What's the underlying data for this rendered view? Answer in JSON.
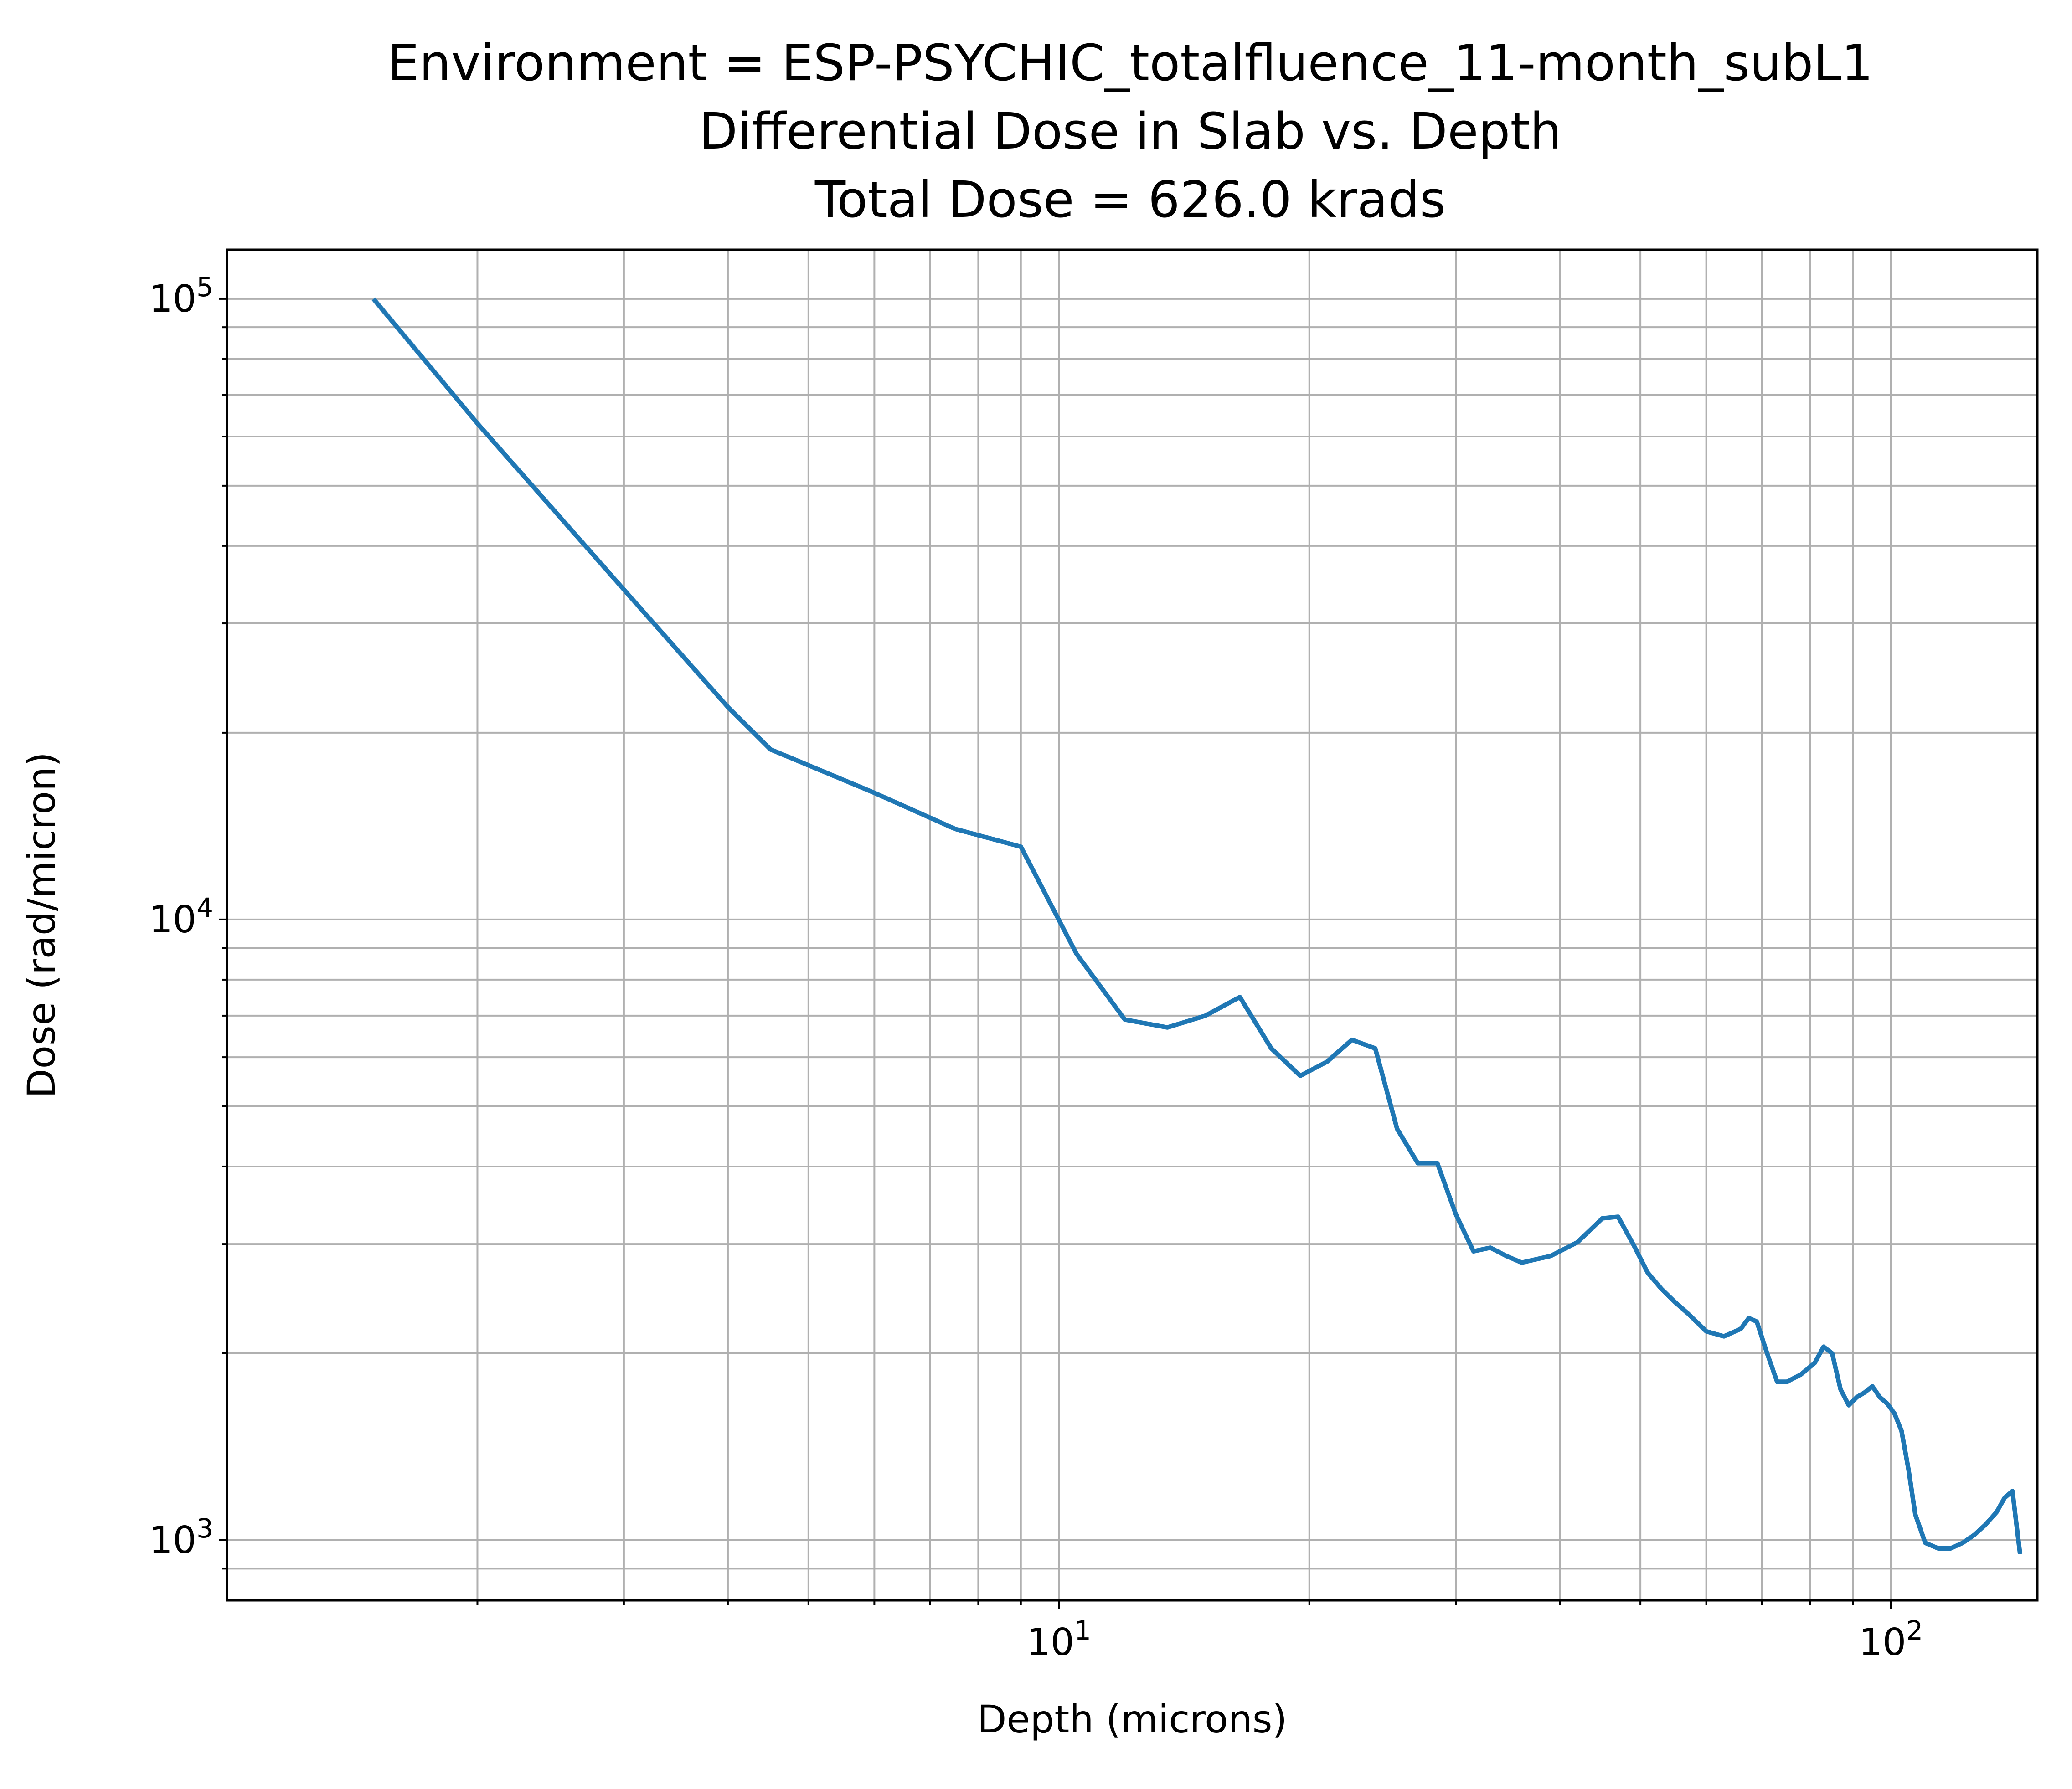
{
  "chart_data": {
    "type": "line",
    "title_lines": [
      "Environment = ESP-PSYCHIC_totalfluence_11-month_subL1",
      "Differential Dose in Slab vs. Depth",
      "Total Dose = 626.0 krads"
    ],
    "xlabel": "Depth (microns)",
    "ylabel": "Dose (rad/micron)",
    "x_scale": "log",
    "y_scale": "log",
    "xlim": [
      1.0,
      150
    ],
    "ylim": [
      800,
      120000
    ],
    "x_ticks": [
      {
        "value": 10,
        "base": "10",
        "exp": "1"
      },
      {
        "value": 100,
        "base": "10",
        "exp": "2"
      }
    ],
    "y_ticks": [
      {
        "value": 1000,
        "base": "10",
        "exp": "3"
      },
      {
        "value": 10000,
        "base": "10",
        "exp": "4"
      },
      {
        "value": 100000,
        "base": "10",
        "exp": "5"
      }
    ],
    "grid": true,
    "series": [
      {
        "color": "#1f77b4",
        "x": [
          1.5,
          2.0,
          3.0,
          4.0,
          4.5,
          6.0,
          7.5,
          9.0,
          10.5,
          12.0,
          13.5,
          15.0,
          16.5,
          18.0,
          19.5,
          21.0,
          22.5,
          24.0,
          25.5,
          27.0,
          28.5,
          30.0,
          31.5,
          33.0,
          34.5,
          36.0,
          39.0,
          42.0,
          45.0,
          47.0,
          49.0,
          51.0,
          53.0,
          55.0,
          57.0,
          60.0,
          63.0,
          66.0,
          67.5,
          69.0,
          71.0,
          73.0,
          75.0,
          78.0,
          81.0,
          83.0,
          85.0,
          87.0,
          89.0,
          91.0,
          93.0,
          95.0,
          97.0,
          99.0,
          101.0,
          103.0,
          105.0,
          107.0,
          110.0,
          114.0,
          118.0,
          122.0,
          126.0,
          130.0,
          134.0,
          137.0,
          140.0,
          143.0
        ],
        "y": [
          100000,
          63000,
          34000,
          22000,
          18800,
          16000,
          14000,
          13100,
          8800,
          6900,
          6700,
          7000,
          7500,
          6200,
          5600,
          5900,
          6400,
          6200,
          4600,
          4050,
          4050,
          3350,
          2920,
          2960,
          2870,
          2800,
          2870,
          3020,
          3300,
          3320,
          3000,
          2700,
          2540,
          2420,
          2320,
          2170,
          2130,
          2190,
          2280,
          2250,
          2000,
          1800,
          1800,
          1850,
          1930,
          2050,
          2000,
          1750,
          1650,
          1700,
          1730,
          1770,
          1700,
          1660,
          1600,
          1500,
          1300,
          1100,
          990,
          970,
          970,
          990,
          1020,
          1060,
          1110,
          1170,
          1200,
          950
        ]
      }
    ]
  }
}
